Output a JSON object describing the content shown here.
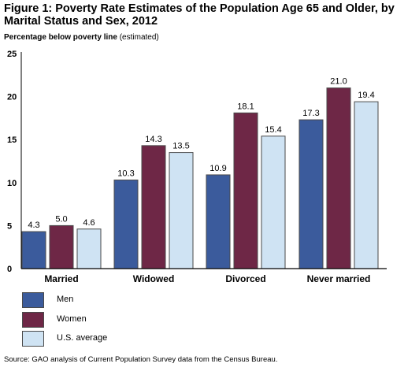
{
  "title": "Figure 1: Poverty Rate Estimates of the Population Age 65 and Older, by Marital Status and Sex, 2012",
  "ylabel_bold": "Percentage below poverty line",
  "ylabel_suffix": " (estimated)",
  "source": "Source: GAO analysis of Current Population Survey data from the Census Bureau.",
  "colors": {
    "men": "#3b5b9c",
    "women": "#6e2746",
    "average": "#cfe3f3"
  },
  "chart_data": {
    "type": "bar",
    "title": "Figure 1: Poverty Rate Estimates of the Population Age 65 and Older, by Marital Status and Sex, 2012",
    "xlabel": "",
    "ylabel": "Percentage below poverty line (estimated)",
    "ylim": [
      0,
      25
    ],
    "yticks": [
      0,
      5,
      10,
      15,
      20,
      25
    ],
    "grid": false,
    "legend_position": "bottom-left",
    "categories": [
      "Married",
      "Widowed",
      "Divorced",
      "Never married"
    ],
    "series": [
      {
        "name": "Men",
        "values": [
          4.3,
          10.3,
          10.9,
          17.3
        ],
        "labels": [
          "4.3",
          "10.3",
          "10.9",
          "17.3"
        ]
      },
      {
        "name": "Women",
        "values": [
          5.0,
          14.3,
          18.1,
          21.0
        ],
        "labels": [
          "5.0",
          "14.3",
          "18.1",
          "21.0"
        ]
      },
      {
        "name": "U.S. average",
        "values": [
          4.6,
          13.5,
          15.4,
          19.4
        ],
        "labels": [
          "4.6",
          "13.5",
          "15.4",
          "19.4"
        ]
      }
    ]
  }
}
